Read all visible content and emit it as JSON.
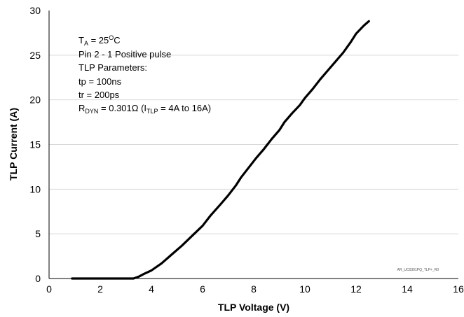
{
  "chart_data": {
    "type": "line",
    "xlabel": "TLP Voltage (V)",
    "ylabel": "TLP Current (A)",
    "xlim": [
      0,
      16
    ],
    "ylim": [
      0,
      30
    ],
    "x_ticks": [
      0,
      2,
      4,
      6,
      8,
      10,
      12,
      14,
      16
    ],
    "y_ticks": [
      0,
      5,
      10,
      15,
      20,
      25,
      30
    ],
    "grid": "horizontal",
    "legend": "none",
    "line_color": "#000000",
    "series": [
      {
        "x": [
          0.9,
          3.3,
          3.5,
          3.7,
          4.0,
          4.4,
          4.8,
          5.2,
          5.6,
          6.0,
          6.3,
          6.7,
          7.0,
          7.3,
          7.5,
          7.8,
          8.1,
          8.4,
          8.7,
          9.0,
          9.2,
          9.5,
          9.8,
          10.0,
          10.3,
          10.6,
          10.9,
          11.2,
          11.5,
          11.8,
          12.0,
          12.3,
          12.5
        ],
        "y": [
          0.0,
          0.0,
          0.2,
          0.5,
          0.9,
          1.7,
          2.7,
          3.7,
          4.8,
          5.9,
          7.0,
          8.3,
          9.3,
          10.4,
          11.3,
          12.4,
          13.5,
          14.5,
          15.6,
          16.6,
          17.5,
          18.5,
          19.4,
          20.2,
          21.2,
          22.3,
          23.3,
          24.3,
          25.3,
          26.5,
          27.4,
          28.3,
          28.8
        ]
      }
    ],
    "annotations": {
      "ta_main": "T",
      "ta_sub": "A",
      "ta_value": " = 25",
      "ta_sup": "O",
      "ta_unit": "C",
      "pulse": "Pin 2 - 1 Positive pulse",
      "params_title": "TLP Parameters:",
      "tp": "tp = 100ns",
      "tr": "tr = 200ps",
      "rdyn_main": "R",
      "rdyn_sub": "DYN",
      "rdyn_value": " = 0.301Ω (I",
      "rdyn_itlp_sub": "TLP",
      "rdyn_range": " = 4A to 16A)",
      "watermark": "AR_UC0301PQ_TLP+_R0"
    }
  }
}
